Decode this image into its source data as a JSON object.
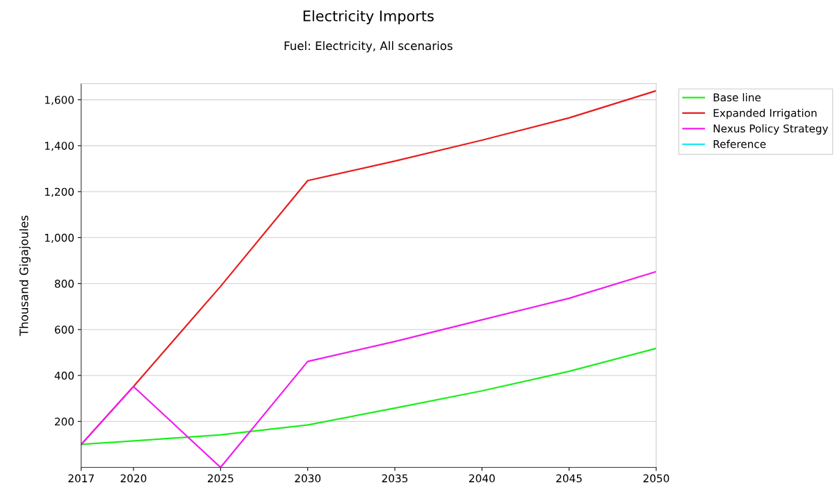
{
  "chart_data": {
    "type": "line",
    "title": "Electricity Imports",
    "subtitle": "Fuel: Electricity, All scenarios",
    "ylabel": "Thousand Gigajoules",
    "x": [
      2017,
      2020,
      2025,
      2030,
      2035,
      2040,
      2045,
      2050
    ],
    "series": [
      {
        "name": "Base line",
        "color": "#1aee1a",
        "values": [
          100,
          115,
          142,
          185,
          258,
          333,
          418,
          518
        ]
      },
      {
        "name": "Expanded Irrigation",
        "color": "#e81c1c",
        "values": [
          100,
          352,
          788,
          1248,
          1333,
          1424,
          1521,
          1639
        ]
      },
      {
        "name": "Nexus Policy Strategy",
        "color": "#f01cf0",
        "values": [
          100,
          352,
          0,
          461,
          548,
          642,
          736,
          852
        ]
      },
      {
        "name": "Reference",
        "color": "#1ce8f0",
        "values": [
          null,
          null,
          null,
          null,
          null,
          null,
          null,
          null
        ]
      }
    ],
    "xlim": [
      2017,
      2050
    ],
    "xticks": [
      2017,
      2020,
      2025,
      2030,
      2035,
      2040,
      2045,
      2050
    ],
    "ylim": [
      0,
      1670
    ],
    "yticks": [
      {
        "value": 200,
        "label": "200"
      },
      {
        "value": 400,
        "label": "400"
      },
      {
        "value": 600,
        "label": "600"
      },
      {
        "value": 800,
        "label": "800"
      },
      {
        "value": 1000,
        "label": "1,000"
      },
      {
        "value": 1200,
        "label": "1,200"
      },
      {
        "value": 1400,
        "label": "1,400"
      },
      {
        "value": 1600,
        "label": "1,600"
      }
    ],
    "grid": "y",
    "legend": "top right",
    "marker": "none",
    "line_style": "solid"
  }
}
